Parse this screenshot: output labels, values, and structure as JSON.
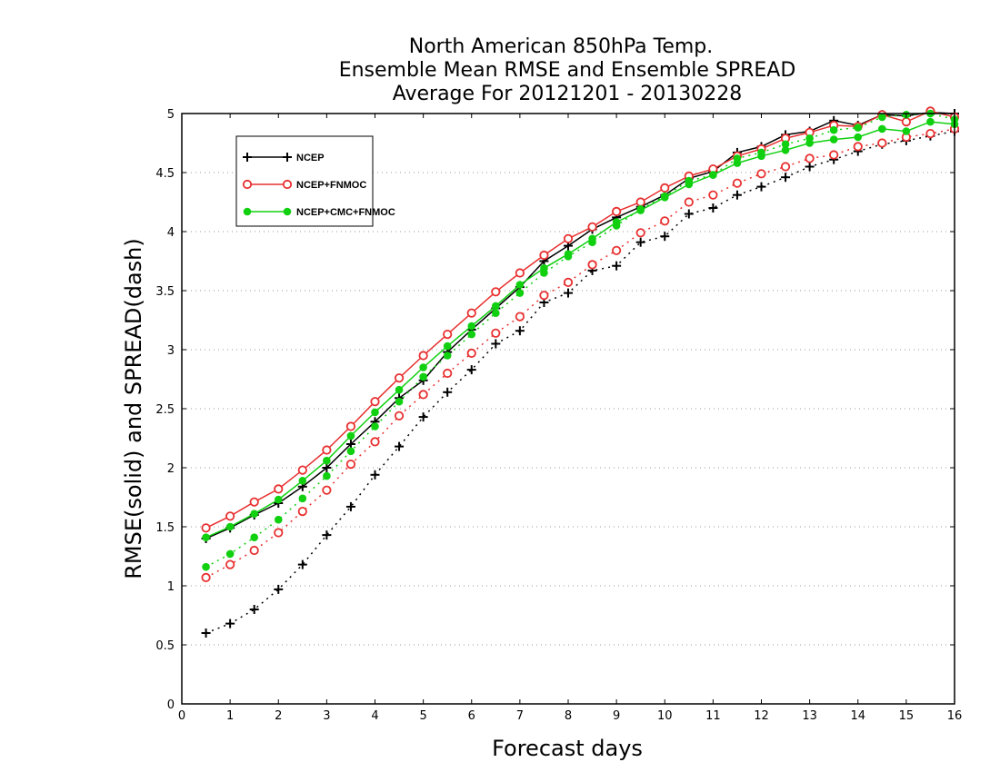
{
  "chart_data": {
    "type": "line",
    "title_lines": [
      "North American 850hPa Temp.",
      "Ensemble Mean RMSE and Ensemble SPREAD",
      "Average For 20121201 - 20130228"
    ],
    "xlabel": "Forecast days",
    "ylabel": "RMSE(solid) and SPREAD(dash)",
    "xlim": [
      0,
      16
    ],
    "ylim": [
      0,
      5
    ],
    "x_ticks": [
      0,
      1,
      2,
      3,
      4,
      5,
      6,
      7,
      8,
      9,
      10,
      11,
      12,
      13,
      14,
      15,
      16
    ],
    "x_tick_labels": [
      "0",
      "1",
      "2",
      "3",
      "4",
      "5",
      "6",
      "7",
      "8",
      "9",
      "10",
      "11",
      "12",
      "13",
      "14",
      "15",
      "16"
    ],
    "y_ticks": [
      0,
      0.5,
      1,
      1.5,
      2,
      2.5,
      3,
      3.5,
      4,
      4.5,
      5
    ],
    "y_tick_labels": [
      "0",
      "0.5",
      "1",
      "1.5",
      "2",
      "2.5",
      "3",
      "3.5",
      "4",
      "4.5",
      "5"
    ],
    "grid": "horizontal dotted",
    "legend_position": "top-left",
    "x": [
      0.5,
      1,
      1.5,
      2,
      2.5,
      3,
      3.5,
      4,
      4.5,
      5,
      5.5,
      6,
      6.5,
      7,
      7.5,
      8,
      8.5,
      9,
      9.5,
      10,
      10.5,
      11,
      11.5,
      12,
      12.5,
      13,
      13.5,
      14,
      14.5,
      15,
      15.5,
      16
    ],
    "series": [
      {
        "name": "NCEP",
        "color": "#000000",
        "marker": "plus",
        "rmse": [
          1.4,
          1.49,
          1.6,
          1.7,
          1.84,
          2.0,
          2.2,
          2.39,
          2.59,
          2.74,
          2.98,
          3.17,
          3.35,
          3.53,
          3.75,
          3.88,
          4.02,
          4.12,
          4.21,
          4.31,
          4.45,
          4.51,
          4.67,
          4.72,
          4.82,
          4.85,
          4.94,
          4.9,
          4.99,
          4.98,
          5.01,
          5.0
        ],
        "spread": [
          0.6,
          0.68,
          0.8,
          0.97,
          1.18,
          1.43,
          1.67,
          1.94,
          2.18,
          2.43,
          2.64,
          2.83,
          3.05,
          3.16,
          3.4,
          3.48,
          3.67,
          3.71,
          3.91,
          3.96,
          4.15,
          4.2,
          4.31,
          4.38,
          4.46,
          4.55,
          4.61,
          4.68,
          4.74,
          4.77,
          4.81,
          4.85
        ]
      },
      {
        "name": "NCEP+FNMOC",
        "color": "#e83030",
        "marker": "open-circle",
        "rmse": [
          1.49,
          1.59,
          1.71,
          1.82,
          1.98,
          2.15,
          2.35,
          2.56,
          2.76,
          2.95,
          3.13,
          3.31,
          3.49,
          3.65,
          3.8,
          3.94,
          4.04,
          4.17,
          4.25,
          4.37,
          4.47,
          4.53,
          4.64,
          4.7,
          4.79,
          4.84,
          4.9,
          4.89,
          4.99,
          4.93,
          5.02,
          4.97
        ],
        "spread": [
          1.07,
          1.18,
          1.3,
          1.45,
          1.63,
          1.81,
          2.03,
          2.22,
          2.44,
          2.62,
          2.8,
          2.97,
          3.14,
          3.28,
          3.46,
          3.57,
          3.72,
          3.84,
          3.99,
          4.09,
          4.25,
          4.31,
          4.41,
          4.49,
          4.55,
          4.62,
          4.65,
          4.72,
          4.75,
          4.8,
          4.83,
          4.87
        ]
      },
      {
        "name": "NCEP+CMC+FNMOC",
        "color": "#10d010",
        "marker": "filled-circle",
        "rmse": [
          1.41,
          1.5,
          1.61,
          1.73,
          1.89,
          2.06,
          2.27,
          2.47,
          2.66,
          2.85,
          3.03,
          3.2,
          3.37,
          3.55,
          3.69,
          3.81,
          3.94,
          4.08,
          4.18,
          4.29,
          4.4,
          4.48,
          4.58,
          4.64,
          4.69,
          4.75,
          4.78,
          4.8,
          4.87,
          4.85,
          4.93,
          4.91
        ],
        "spread": [
          1.16,
          1.27,
          1.41,
          1.56,
          1.74,
          1.93,
          2.14,
          2.35,
          2.56,
          2.77,
          2.95,
          3.13,
          3.31,
          3.48,
          3.65,
          3.79,
          3.91,
          4.05,
          4.19,
          4.3,
          4.43,
          4.48,
          4.62,
          4.67,
          4.74,
          4.79,
          4.86,
          4.88,
          4.97,
          4.99,
          5.0,
          4.95
        ]
      }
    ]
  }
}
